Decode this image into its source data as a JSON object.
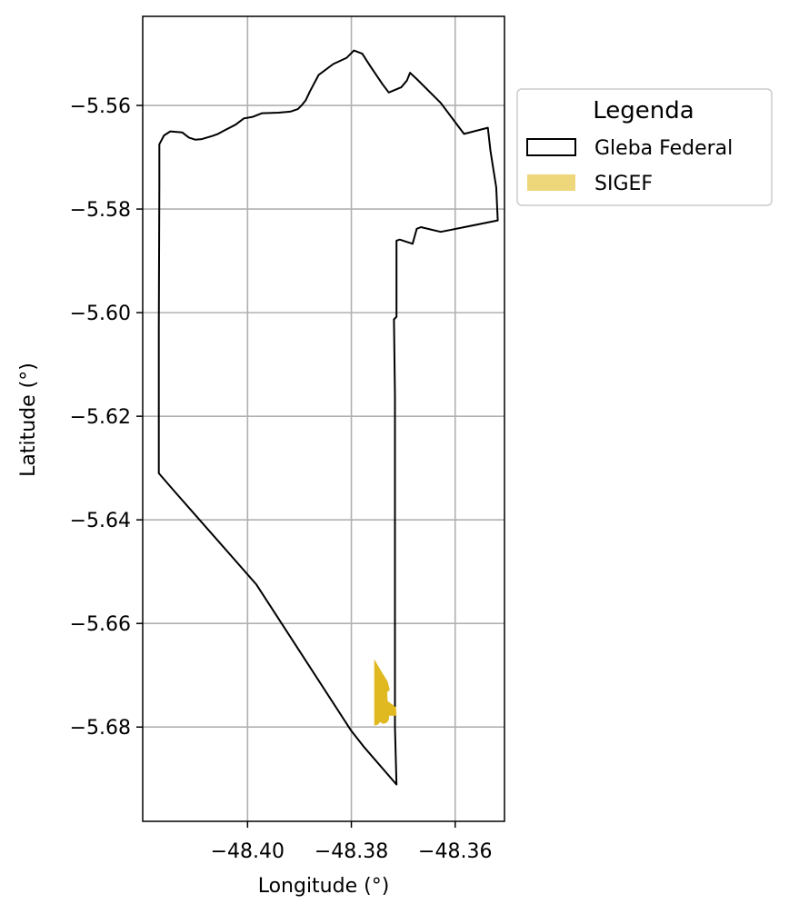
{
  "chart_data": {
    "type": "map",
    "xlabel": "Longitude (°)",
    "ylabel": "Latitude (°)",
    "xlim": [
      -48.4202,
      -48.3505
    ],
    "ylim": [
      -5.6982,
      -5.5428
    ],
    "x_ticks": [
      -48.4,
      -48.38,
      -48.36
    ],
    "x_tick_labels": [
      "−48.40",
      "−48.38",
      "−48.36"
    ],
    "y_ticks": [
      -5.56,
      -5.58,
      -5.6,
      -5.62,
      -5.64,
      -5.66,
      -5.68
    ],
    "y_tick_labels": [
      "−5.56",
      "−5.58",
      "−5.60",
      "−5.62",
      "−5.64",
      "−5.66",
      "−5.68"
    ],
    "grid": true,
    "legend": {
      "title": "Legenda",
      "placement": "outside-upper-right",
      "entries": [
        {
          "label": "Gleba Federal",
          "style": "outline",
          "edge_color": "#000000"
        },
        {
          "label": "SIGEF",
          "style": "fill",
          "color": "#eed67a"
        }
      ]
    },
    "colors": {
      "gleba_edge": "#000000",
      "sigef_fill": "#dfb91f",
      "grid": "#b0b0b0"
    },
    "layers": [
      {
        "name": "Gleba Federal",
        "type": "polygon-outline",
        "coords": [
          [
            -48.3713,
            -5.6911
          ],
          [
            -48.3777,
            -5.6837
          ],
          [
            -48.3801,
            -5.6806
          ],
          [
            -48.3983,
            -5.6525
          ],
          [
            -48.4103,
            -5.6388
          ],
          [
            -48.4139,
            -5.6347
          ],
          [
            -48.4171,
            -5.631
          ],
          [
            -48.4171,
            -5.603
          ],
          [
            -48.417,
            -5.5755
          ],
          [
            -48.417,
            -5.5675
          ],
          [
            -48.4161,
            -5.5658
          ],
          [
            -48.4149,
            -5.565
          ],
          [
            -48.4126,
            -5.5652
          ],
          [
            -48.4113,
            -5.5662
          ],
          [
            -48.4101,
            -5.5666
          ],
          [
            -48.4088,
            -5.5665
          ],
          [
            -48.4068,
            -5.5659
          ],
          [
            -48.4057,
            -5.5655
          ],
          [
            -48.4044,
            -5.5648
          ],
          [
            -48.4023,
            -5.5637
          ],
          [
            -48.4007,
            -5.5625
          ],
          [
            -48.399,
            -5.5622
          ],
          [
            -48.3972,
            -5.5615
          ],
          [
            -48.394,
            -5.5614
          ],
          [
            -48.3918,
            -5.5612
          ],
          [
            -48.3903,
            -5.5607
          ],
          [
            -48.3896,
            -5.56
          ],
          [
            -48.3888,
            -5.559
          ],
          [
            -48.388,
            -5.5573
          ],
          [
            -48.3863,
            -5.5541
          ],
          [
            -48.3835,
            -5.552
          ],
          [
            -48.3809,
            -5.5508
          ],
          [
            -48.3795,
            -5.5494
          ],
          [
            -48.3779,
            -5.55
          ],
          [
            -48.3763,
            -5.5525
          ],
          [
            -48.374,
            -5.5559
          ],
          [
            -48.3728,
            -5.5575
          ],
          [
            -48.3704,
            -5.5565
          ],
          [
            -48.3693,
            -5.5552
          ],
          [
            -48.3687,
            -5.5537
          ],
          [
            -48.3674,
            -5.5549
          ],
          [
            -48.3628,
            -5.5595
          ],
          [
            -48.3583,
            -5.5655
          ],
          [
            -48.3537,
            -5.5643
          ],
          [
            -48.3532,
            -5.5688
          ],
          [
            -48.3521,
            -5.5758
          ],
          [
            -48.3518,
            -5.5822
          ],
          [
            -48.3628,
            -5.5844
          ],
          [
            -48.3666,
            -5.5835
          ],
          [
            -48.3674,
            -5.5838
          ],
          [
            -48.3682,
            -5.5867
          ],
          [
            -48.3707,
            -5.5859
          ],
          [
            -48.3713,
            -5.5861
          ],
          [
            -48.3713,
            -5.6008
          ],
          [
            -48.3718,
            -5.6013
          ],
          [
            -48.3716,
            -5.616
          ],
          [
            -48.3716,
            -5.64
          ],
          [
            -48.3716,
            -5.68
          ],
          [
            -48.3713,
            -5.6911
          ]
        ]
      },
      {
        "name": "SIGEF",
        "type": "polygon-fill",
        "coords": [
          [
            -48.3756,
            -5.6669
          ],
          [
            -48.3742,
            -5.6693
          ],
          [
            -48.373,
            -5.6712
          ],
          [
            -48.3726,
            -5.6728
          ],
          [
            -48.3731,
            -5.6733
          ],
          [
            -48.373,
            -5.675
          ],
          [
            -48.3723,
            -5.6755
          ],
          [
            -48.3719,
            -5.6758
          ],
          [
            -48.3714,
            -5.6762
          ],
          [
            -48.3713,
            -5.6778
          ],
          [
            -48.372,
            -5.6778
          ],
          [
            -48.3727,
            -5.6778
          ],
          [
            -48.3728,
            -5.6786
          ],
          [
            -48.3732,
            -5.6792
          ],
          [
            -48.374,
            -5.6794
          ],
          [
            -48.3744,
            -5.679
          ],
          [
            -48.375,
            -5.6796
          ],
          [
            -48.3756,
            -5.6797
          ]
        ]
      }
    ]
  }
}
